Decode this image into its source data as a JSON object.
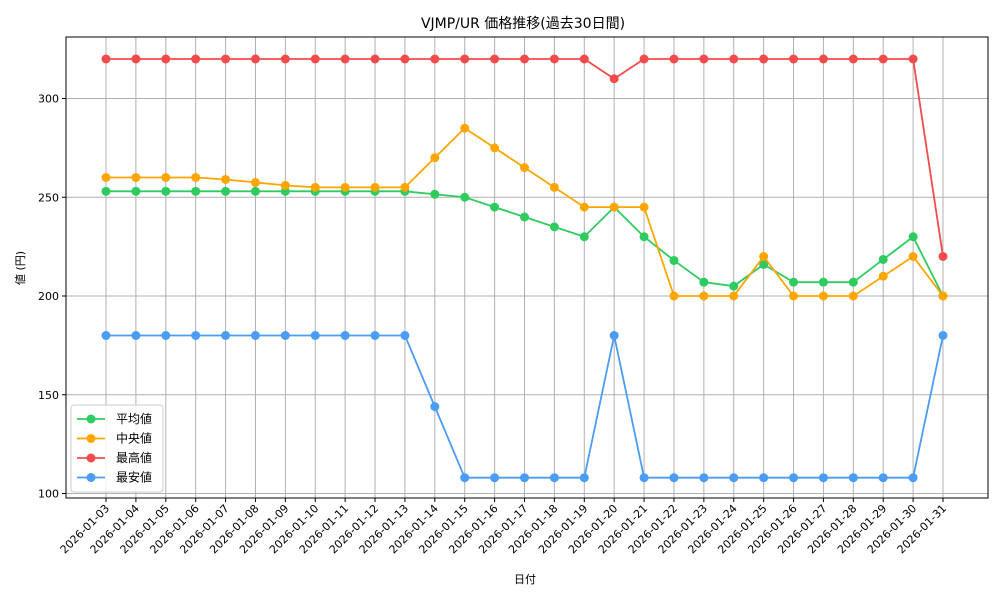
{
  "chart_data": {
    "type": "line",
    "title": "VJMP/UR 価格推移(過去30日間)",
    "xlabel": "日付",
    "ylabel": "値 (円)",
    "ylim": [
      97,
      330
    ],
    "yticks": [
      100,
      150,
      200,
      250,
      300
    ],
    "grid": true,
    "legend_position": "lower left",
    "categories": [
      "2026-01-03",
      "2026-01-04",
      "2026-01-05",
      "2026-01-06",
      "2026-01-07",
      "2026-01-08",
      "2026-01-09",
      "2026-01-10",
      "2026-01-11",
      "2026-01-12",
      "2026-01-13",
      "2026-01-14",
      "2026-01-15",
      "2026-01-16",
      "2026-01-17",
      "2026-01-18",
      "2026-01-19",
      "2026-01-20",
      "2026-01-21",
      "2026-01-22",
      "2026-01-23",
      "2026-01-24",
      "2026-01-25",
      "2026-01-26",
      "2026-01-27",
      "2026-01-28",
      "2026-01-29",
      "2026-01-30",
      "2026-01-31"
    ],
    "series": [
      {
        "name": "平均値",
        "color": "#2ecc5f",
        "values": [
          253,
          253,
          253,
          253,
          253,
          253,
          253,
          253,
          253,
          253,
          253,
          251.5,
          250,
          245,
          240,
          235,
          230,
          245,
          230,
          218,
          207,
          205,
          216,
          207,
          207,
          207,
          218.5,
          230,
          200
        ]
      },
      {
        "name": "中央値",
        "color": "#ffa500",
        "values": [
          260,
          260,
          260,
          260,
          259,
          257.5,
          256,
          255,
          255,
          255,
          255,
          270,
          285,
          275,
          265,
          255,
          245,
          245,
          245,
          200,
          200,
          200,
          220,
          200,
          200,
          200,
          210,
          220,
          200
        ]
      },
      {
        "name": "最高値",
        "color": "#f24b4b",
        "values": [
          320,
          320,
          320,
          320,
          320,
          320,
          320,
          320,
          320,
          320,
          320,
          320,
          320,
          320,
          320,
          320,
          320,
          310,
          320,
          320,
          320,
          320,
          320,
          320,
          320,
          320,
          320,
          320,
          220
        ]
      },
      {
        "name": "最安値",
        "color": "#4a9cf5",
        "values": [
          180,
          180,
          180,
          180,
          180,
          180,
          180,
          180,
          180,
          180,
          180,
          144,
          108,
          108,
          108,
          108,
          108,
          180,
          108,
          108,
          108,
          108,
          108,
          108,
          108,
          108,
          108,
          108,
          180
        ]
      }
    ]
  }
}
